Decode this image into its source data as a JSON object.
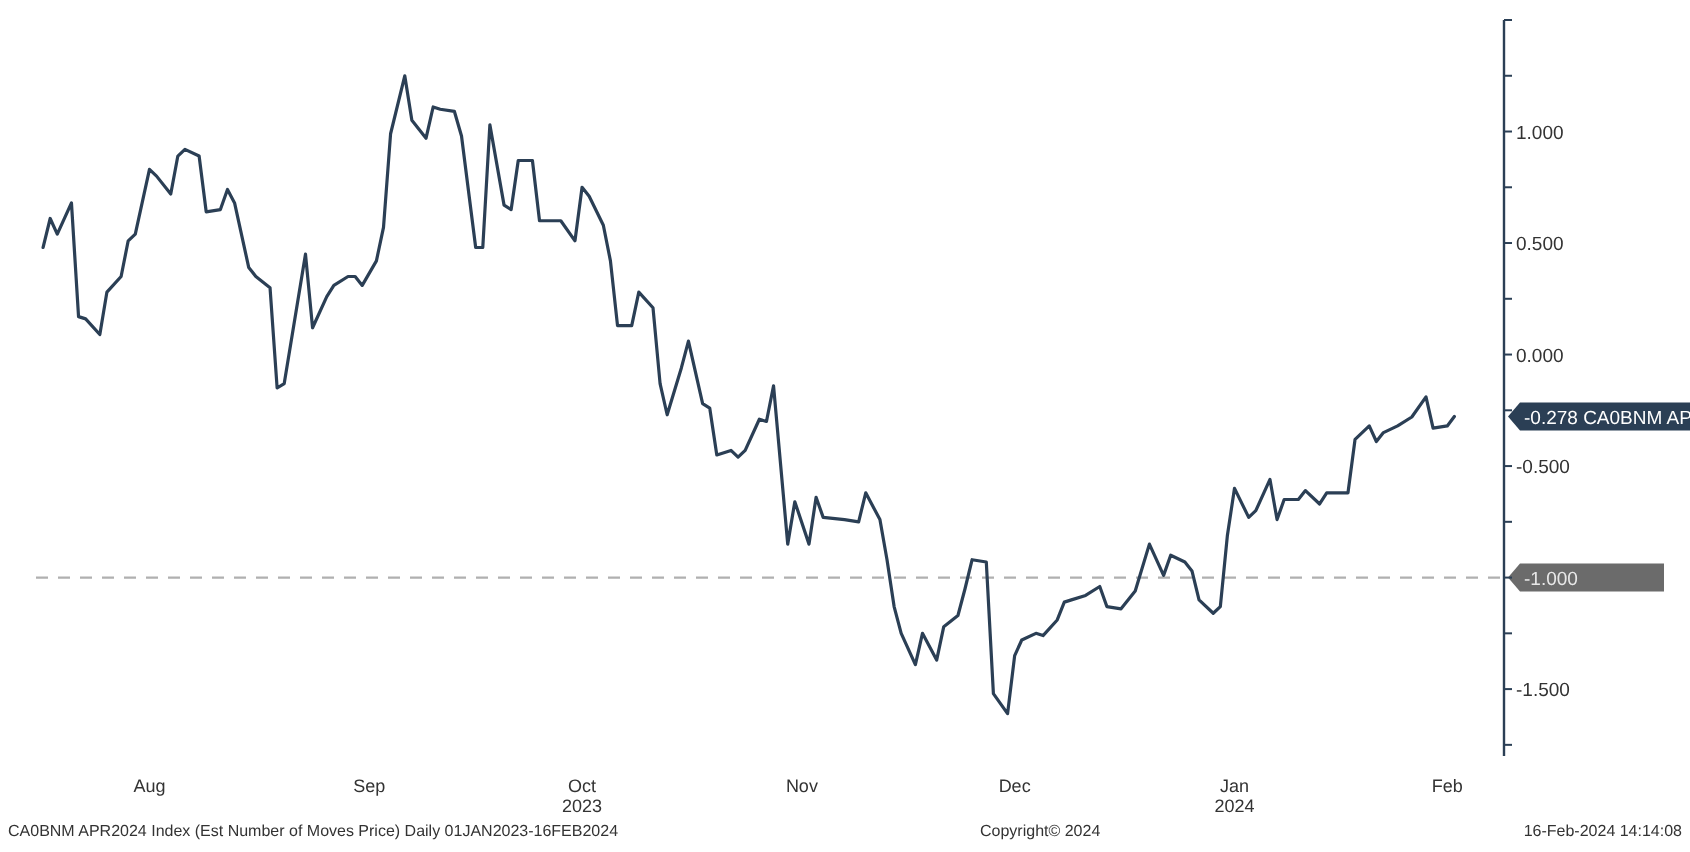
{
  "chart_data": {
    "type": "line",
    "x": [
      "2023-08-01",
      "2023-08-02",
      "2023-08-03",
      "2023-08-05",
      "2023-08-06",
      "2023-08-07",
      "2023-08-09",
      "2023-08-10",
      "2023-08-12",
      "2023-08-13",
      "2023-08-14",
      "2023-08-16",
      "2023-08-17",
      "2023-08-19",
      "2023-08-20",
      "2023-08-21",
      "2023-08-23",
      "2023-08-24",
      "2023-08-26",
      "2023-08-27",
      "2023-08-28",
      "2023-08-30",
      "2023-08-31",
      "2023-09-02",
      "2023-09-03",
      "2023-09-04",
      "2023-09-07",
      "2023-09-08",
      "2023-09-10",
      "2023-09-11",
      "2023-09-13",
      "2023-09-14",
      "2023-09-15",
      "2023-09-17",
      "2023-09-18",
      "2023-09-19",
      "2023-09-21",
      "2023-09-22",
      "2023-09-24",
      "2023-09-25",
      "2023-09-26",
      "2023-09-28",
      "2023-09-29",
      "2023-10-01",
      "2023-10-02",
      "2023-10-03",
      "2023-10-05",
      "2023-10-06",
      "2023-10-07",
      "2023-10-09",
      "2023-10-10",
      "2023-10-12",
      "2023-10-13",
      "2023-10-15",
      "2023-10-16",
      "2023-10-17",
      "2023-10-19",
      "2023-10-20",
      "2023-10-21",
      "2023-10-23",
      "2023-10-24",
      "2023-10-26",
      "2023-10-27",
      "2023-10-28",
      "2023-10-30",
      "2023-10-31",
      "2023-11-02",
      "2023-11-03",
      "2023-11-04",
      "2023-11-06",
      "2023-11-07",
      "2023-11-08",
      "2023-11-10",
      "2023-11-11",
      "2023-11-12",
      "2023-11-14",
      "2023-11-15",
      "2023-11-17",
      "2023-11-18",
      "2023-11-19",
      "2023-11-22",
      "2023-11-24",
      "2023-11-25",
      "2023-11-27",
      "2023-11-28",
      "2023-11-29",
      "2023-11-30",
      "2023-12-02",
      "2023-12-03",
      "2023-12-05",
      "2023-12-06",
      "2023-12-08",
      "2023-12-09",
      "2023-12-10",
      "2023-12-12",
      "2023-12-13",
      "2023-12-15",
      "2023-12-16",
      "2023-12-17",
      "2023-12-19",
      "2023-12-20",
      "2023-12-22",
      "2023-12-23",
      "2023-12-24",
      "2023-12-26",
      "2023-12-28",
      "2023-12-29",
      "2023-12-31",
      "2024-01-02",
      "2024-01-04",
      "2024-01-06",
      "2024-01-07",
      "2024-01-09",
      "2024-01-10",
      "2024-01-11",
      "2024-01-13",
      "2024-01-14",
      "2024-01-15",
      "2024-01-16",
      "2024-01-18",
      "2024-01-19",
      "2024-01-21",
      "2024-01-22",
      "2024-01-23",
      "2024-01-25",
      "2024-01-26",
      "2024-01-28",
      "2024-01-29",
      "2024-02-01",
      "2024-02-02",
      "2024-02-04",
      "2024-02-05",
      "2024-02-06",
      "2024-02-08",
      "2024-02-10",
      "2024-02-12",
      "2024-02-13",
      "2024-02-15",
      "2024-02-16"
    ],
    "series": [
      {
        "name": "CA0BNM AP",
        "color": "#2b3f55",
        "values": [
          0.48,
          0.61,
          0.54,
          0.68,
          0.17,
          0.16,
          0.09,
          0.28,
          0.35,
          0.51,
          0.54,
          0.83,
          0.8,
          0.72,
          0.89,
          0.92,
          0.89,
          0.64,
          0.65,
          0.74,
          0.68,
          0.39,
          0.35,
          0.3,
          -0.15,
          -0.13,
          0.45,
          0.12,
          0.26,
          0.31,
          0.35,
          0.35,
          0.31,
          0.42,
          0.57,
          0.99,
          1.25,
          1.05,
          0.97,
          1.11,
          1.1,
          1.09,
          0.98,
          0.48,
          0.48,
          1.03,
          0.67,
          0.65,
          0.87,
          0.87,
          0.6,
          0.6,
          0.6,
          0.51,
          0.75,
          0.71,
          0.58,
          0.42,
          0.13,
          0.13,
          0.28,
          0.21,
          -0.13,
          -0.27,
          -0.06,
          0.06,
          -0.22,
          -0.24,
          -0.45,
          -0.43,
          -0.46,
          -0.43,
          -0.29,
          -0.3,
          -0.14,
          -0.85,
          -0.66,
          -0.85,
          -0.64,
          -0.73,
          -0.74,
          -0.75,
          -0.62,
          -0.74,
          -0.92,
          -1.13,
          -1.25,
          -1.39,
          -1.25,
          -1.37,
          -1.22,
          -1.17,
          -1.05,
          -0.92,
          -0.93,
          -1.52,
          -1.61,
          -1.35,
          -1.28,
          -1.25,
          -1.26,
          -1.19,
          -1.11,
          -1.1,
          -1.08,
          -1.04,
          -1.13,
          -1.14,
          -1.06,
          -0.85,
          -0.99,
          -0.9,
          -0.93,
          -0.97,
          -1.1,
          -1.16,
          -1.13,
          -0.81,
          -0.6,
          -0.73,
          -0.7,
          -0.56,
          -0.74,
          -0.65,
          -0.65,
          -0.61,
          -0.67,
          -0.62,
          -0.62,
          -0.38,
          -0.32,
          -0.39,
          -0.35,
          -0.32,
          -0.28,
          -0.19,
          -0.33,
          -0.32,
          -0.278
        ],
        "value_labels": [
          null,
          null,
          null,
          null,
          null,
          null,
          null,
          null,
          null,
          null,
          null,
          null,
          null,
          null,
          null,
          null,
          null,
          null,
          null,
          null,
          null,
          null,
          null,
          null,
          null,
          null,
          null,
          null,
          null,
          null,
          null,
          null,
          null,
          null,
          null,
          null,
          null,
          null,
          null,
          null,
          null,
          null,
          null,
          null,
          null,
          null,
          null,
          null,
          null,
          null,
          null,
          null,
          null,
          null,
          null,
          null,
          null,
          null,
          null,
          null,
          null,
          null,
          null,
          null,
          null,
          null,
          null,
          null,
          null,
          null,
          null,
          null,
          null,
          null,
          null,
          null,
          null,
          null,
          null,
          null,
          null,
          null,
          null,
          null,
          null,
          null,
          null,
          null,
          null,
          null,
          null,
          null,
          null,
          null,
          null,
          null,
          null,
          null,
          null,
          null,
          null,
          null,
          null,
          null,
          null,
          null,
          null,
          null,
          null,
          null,
          null,
          null,
          null,
          null,
          null,
          null,
          null,
          null,
          null,
          null,
          null,
          null,
          null,
          null,
          null,
          null,
          null,
          null,
          null,
          null,
          null,
          null,
          null,
          null,
          null,
          null,
          null,
          null,
          "-0.278"
        ]
      }
    ],
    "xlim": [
      "2023-07-31",
      "2024-02-23"
    ],
    "xticks": [
      {
        "value": "2023-08-16",
        "label": "Aug"
      },
      {
        "value": "2023-09-16",
        "label": "Sep"
      },
      {
        "value": "2023-10-16",
        "label": "Oct\n2023"
      },
      {
        "value": "2023-11-16",
        "label": "Nov"
      },
      {
        "value": "2023-12-16",
        "label": "Dec"
      },
      {
        "value": "2024-01-16",
        "label": "Jan\n2024"
      },
      {
        "value": "2024-02-15",
        "label": "Feb"
      }
    ],
    "ylim": [
      -1.8,
      1.5
    ],
    "yticks": [
      {
        "value": 1.5,
        "label": null
      },
      {
        "value": 1.25,
        "label": null
      },
      {
        "value": 1,
        "label": "1.000"
      },
      {
        "value": 0.75,
        "label": null
      },
      {
        "value": 0.5,
        "label": "0.500"
      },
      {
        "value": 0.25,
        "label": null
      },
      {
        "value": 0,
        "label": "0.000"
      },
      {
        "value": -0.25,
        "label": null
      },
      {
        "value": -0.5,
        "label": "-0.500"
      },
      {
        "value": -0.75,
        "label": null
      },
      {
        "value": -1,
        "label": null
      },
      {
        "value": -1.25,
        "label": null
      },
      {
        "value": -1.5,
        "label": "-1.500"
      },
      {
        "value": -1.75,
        "label": null
      }
    ],
    "ref_lines": [
      {
        "axis": "y",
        "value": -1,
        "label": "-1.000",
        "color": "#b0b0b0",
        "line_style": "dashed"
      }
    ],
    "grid": false,
    "line_style": "solid",
    "annotations": [
      "CA0BNM APR2024 Index (Est Number of Moves Price)  Daily 01JAN2023-16FEB2024",
      "Copyright© 2024",
      "16-Feb-2024 14:14:08"
    ]
  }
}
